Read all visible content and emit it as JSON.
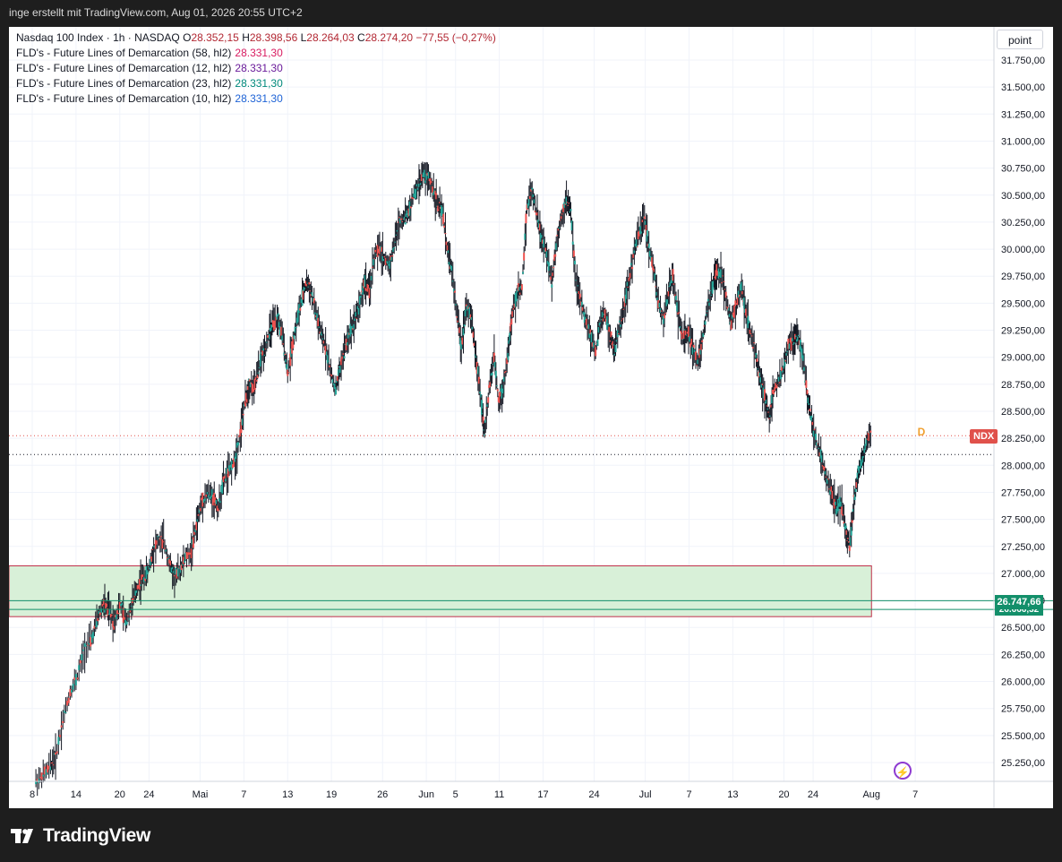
{
  "header": {
    "attribution": "inge erstellt mit TradingView.com, Aug 01, 2026 20:55 UTC+2"
  },
  "legend": {
    "symbol": "Nasdaq 100 Index · 1h · NASDAQ",
    "open_key": "O",
    "open": "28.352,15",
    "high_key": "H",
    "high": "28.398,56",
    "low_key": "L",
    "low": "28.264,03",
    "close_key": "C",
    "close": "28.274,20",
    "change": "−77,55 (−0,27%)",
    "indicators": [
      {
        "label": "FLD's - Future Lines of Demarcation (58, hl2)",
        "value": "28.331,30",
        "color": "#d81b60"
      },
      {
        "label": "FLD's - Future Lines of Demarcation (12, hl2)",
        "value": "28.331,30",
        "color": "#6a1b9a"
      },
      {
        "label": "FLD's - Future Lines of Demarcation (23, hl2)",
        "value": "28.331,30",
        "color": "#00897b"
      },
      {
        "label": "FLD's - Future Lines of Demarcation (10, hl2)",
        "value": "28.331,30",
        "color": "#1e63d6"
      }
    ]
  },
  "scale_mode_button": "point",
  "badges": {
    "symbol_badge": "NDX",
    "fld_value": "26.747,66",
    "fld_value_hidden": "26.666,32",
    "session_marker": "D"
  },
  "colors": {
    "candle_up": "#26a69a",
    "candle_down": "#ef5350",
    "bar_wick": "#131722",
    "zone_fill": "#d8f0d8",
    "zone_border": "#c0304a",
    "fld_line": "#138f6a",
    "ndx_badge": "#e0514b"
  },
  "footer": {
    "brand": "TradingView"
  },
  "chart_data": {
    "type": "line",
    "title": "Nasdaq 100 Index · 1h · NASDAQ",
    "xlabel": "",
    "ylabel": "",
    "ylim": [
      25100,
      31950
    ],
    "y_ticks": [
      "31.750,00",
      "31.500,00",
      "31.250,00",
      "31.000,00",
      "30.750,00",
      "30.500,00",
      "30.250,00",
      "30.000,00",
      "29.750,00",
      "29.500,00",
      "29.250,00",
      "29.000,00",
      "28.750,00",
      "28.500,00",
      "28.250,00",
      "28.000,00",
      "27.750,00",
      "27.500,00",
      "27.250,00",
      "27.000,00",
      "26.750,00",
      "26.500,00",
      "26.250,00",
      "26.000,00",
      "25.750,00",
      "25.500,00",
      "25.250,00"
    ],
    "y_tick_values": [
      31750,
      31500,
      31250,
      31000,
      30750,
      30500,
      30250,
      30000,
      29750,
      29500,
      29250,
      29000,
      28750,
      28500,
      28250,
      28000,
      27750,
      27500,
      27250,
      27000,
      26750,
      26500,
      26250,
      26000,
      25750,
      25500,
      25250
    ],
    "x_ticks": [
      {
        "label": "8",
        "day": 0
      },
      {
        "label": "14",
        "day": 6
      },
      {
        "label": "20",
        "day": 12
      },
      {
        "label": "24",
        "day": 16
      },
      {
        "label": "Mai",
        "day": 23
      },
      {
        "label": "7",
        "day": 29
      },
      {
        "label": "13",
        "day": 35
      },
      {
        "label": "19",
        "day": 41
      },
      {
        "label": "26",
        "day": 48
      },
      {
        "label": "Jun",
        "day": 54
      },
      {
        "label": "5",
        "day": 58
      },
      {
        "label": "11",
        "day": 64
      },
      {
        "label": "17",
        "day": 70
      },
      {
        "label": "24",
        "day": 77
      },
      {
        "label": "Jul",
        "day": 84
      },
      {
        "label": "7",
        "day": 90
      },
      {
        "label": "13",
        "day": 96
      },
      {
        "label": "20",
        "day": 103
      },
      {
        "label": "24",
        "day": 107
      },
      {
        "label": "Aug",
        "day": 115
      },
      {
        "label": "7",
        "day": 121
      }
    ],
    "series": [
      {
        "name": "Nasdaq 100 Index",
        "points": [
          [
            0.5,
            25080
          ],
          [
            1.5,
            25130
          ],
          [
            2.5,
            25220
          ],
          [
            3.2,
            25300
          ],
          [
            4.2,
            25650
          ],
          [
            5.2,
            25900
          ],
          [
            6.2,
            26050
          ],
          [
            7.2,
            26300
          ],
          [
            8.2,
            26400
          ],
          [
            9.0,
            26600
          ],
          [
            9.8,
            26720
          ],
          [
            10.5,
            26650
          ],
          [
            11.2,
            26550
          ],
          [
            12.0,
            26720
          ],
          [
            12.8,
            26550
          ],
          [
            13.6,
            26700
          ],
          [
            14.3,
            26850
          ],
          [
            15.0,
            26950
          ],
          [
            15.8,
            27000
          ],
          [
            16.5,
            27200
          ],
          [
            17.2,
            27300
          ],
          [
            18.0,
            27300
          ],
          [
            18.8,
            27100
          ],
          [
            19.5,
            26950
          ],
          [
            20.3,
            27050
          ],
          [
            21.0,
            27150
          ],
          [
            21.8,
            27200
          ],
          [
            22.5,
            27450
          ],
          [
            23.2,
            27650
          ],
          [
            24.0,
            27750
          ],
          [
            24.8,
            27700
          ],
          [
            25.5,
            27600
          ],
          [
            26.2,
            27850
          ],
          [
            27.0,
            27950
          ],
          [
            27.8,
            28050
          ],
          [
            28.5,
            28300
          ],
          [
            29.2,
            28600
          ],
          [
            29.8,
            28750
          ],
          [
            30.4,
            28700
          ],
          [
            31.0,
            28900
          ],
          [
            31.7,
            29050
          ],
          [
            32.4,
            29200
          ],
          [
            33.0,
            29300
          ],
          [
            33.7,
            29350
          ],
          [
            34.4,
            29150
          ],
          [
            35.0,
            28850
          ],
          [
            35.6,
            29100
          ],
          [
            36.3,
            29350
          ],
          [
            37.0,
            29550
          ],
          [
            37.6,
            29700
          ],
          [
            38.2,
            29600
          ],
          [
            38.9,
            29400
          ],
          [
            39.6,
            29200
          ],
          [
            40.2,
            29100
          ],
          [
            40.9,
            28850
          ],
          [
            41.6,
            28700
          ],
          [
            42.2,
            28900
          ],
          [
            42.9,
            29100
          ],
          [
            43.6,
            29250
          ],
          [
            44.2,
            29350
          ],
          [
            44.9,
            29500
          ],
          [
            45.6,
            29700
          ],
          [
            46.2,
            29600
          ],
          [
            46.9,
            29950
          ],
          [
            47.6,
            30000
          ],
          [
            48.3,
            29900
          ],
          [
            49.0,
            29850
          ],
          [
            49.6,
            30050
          ],
          [
            50.3,
            30250
          ],
          [
            51.0,
            30300
          ],
          [
            51.6,
            30350
          ],
          [
            52.3,
            30500
          ],
          [
            53.0,
            30600
          ],
          [
            53.6,
            30700
          ],
          [
            54.3,
            30650
          ],
          [
            55.0,
            30550
          ],
          [
            55.6,
            30400
          ],
          [
            56.2,
            30350
          ],
          [
            56.9,
            30000
          ],
          [
            57.5,
            29800
          ],
          [
            58.2,
            29400
          ],
          [
            58.8,
            29100
          ],
          [
            59.5,
            29500
          ],
          [
            60.2,
            29350
          ],
          [
            60.8,
            29000
          ],
          [
            61.5,
            28600
          ],
          [
            62.0,
            28300
          ],
          [
            62.6,
            28700
          ],
          [
            63.3,
            29000
          ],
          [
            63.9,
            28600
          ],
          [
            64.5,
            28700
          ],
          [
            65.2,
            29050
          ],
          [
            65.8,
            29400
          ],
          [
            66.5,
            29600
          ],
          [
            67.1,
            29650
          ],
          [
            67.8,
            30400
          ],
          [
            68.5,
            30550
          ],
          [
            69.2,
            30300
          ],
          [
            69.8,
            30100
          ],
          [
            70.5,
            29950
          ],
          [
            71.2,
            29700
          ],
          [
            71.8,
            30050
          ],
          [
            72.5,
            30300
          ],
          [
            73.2,
            30450
          ],
          [
            73.8,
            30350
          ],
          [
            74.5,
            29700
          ],
          [
            75.2,
            29500
          ],
          [
            75.8,
            29350
          ],
          [
            76.5,
            29200
          ],
          [
            77.2,
            29050
          ],
          [
            77.9,
            29350
          ],
          [
            78.5,
            29400
          ],
          [
            79.2,
            29200
          ],
          [
            79.8,
            29050
          ],
          [
            80.5,
            29300
          ],
          [
            81.2,
            29500
          ],
          [
            81.8,
            29700
          ],
          [
            82.5,
            30000
          ],
          [
            83.2,
            30150
          ],
          [
            83.9,
            30300
          ],
          [
            84.5,
            30000
          ],
          [
            85.2,
            29800
          ],
          [
            85.8,
            29500
          ],
          [
            86.5,
            29350
          ],
          [
            87.2,
            29600
          ],
          [
            87.8,
            29750
          ],
          [
            88.5,
            29400
          ],
          [
            89.2,
            29150
          ],
          [
            89.8,
            29250
          ],
          [
            90.5,
            29100
          ],
          [
            91.2,
            28950
          ],
          [
            91.8,
            29150
          ],
          [
            92.5,
            29450
          ],
          [
            93.2,
            29650
          ],
          [
            93.8,
            29800
          ],
          [
            94.5,
            29750
          ],
          [
            95.2,
            29500
          ],
          [
            95.8,
            29300
          ],
          [
            96.5,
            29500
          ],
          [
            97.2,
            29650
          ],
          [
            97.8,
            29400
          ],
          [
            98.5,
            29200
          ],
          [
            99.2,
            29000
          ],
          [
            99.8,
            28800
          ],
          [
            100.5,
            28600
          ],
          [
            101.0,
            28450
          ],
          [
            101.6,
            28700
          ],
          [
            102.3,
            28800
          ],
          [
            103.0,
            28900
          ],
          [
            103.6,
            29100
          ],
          [
            104.3,
            29150
          ],
          [
            104.9,
            29200
          ],
          [
            105.5,
            29050
          ],
          [
            106.2,
            28650
          ],
          [
            106.8,
            28400
          ],
          [
            107.5,
            28200
          ],
          [
            108.2,
            28050
          ],
          [
            108.8,
            27900
          ],
          [
            109.5,
            27750
          ],
          [
            110.2,
            27600
          ],
          [
            110.8,
            27650
          ],
          [
            111.5,
            27400
          ],
          [
            112.0,
            27250
          ],
          [
            112.6,
            27650
          ],
          [
            113.2,
            27950
          ],
          [
            113.8,
            28050
          ],
          [
            114.4,
            28250
          ],
          [
            115.0,
            28300
          ]
        ]
      },
      {
        "name": "FLD's - Future Lines of Demarcation (58, hl2)",
        "level": 26747.66
      },
      {
        "name": "FLD's - Future Lines of Demarcation (12, hl2)",
        "level": 26666.32
      }
    ],
    "zone": {
      "day_start": -5,
      "day_end": 115,
      "price_top": 27070,
      "price_bottom": 26600
    },
    "last_price": 28274.2,
    "reference_level": 28100,
    "grid": true,
    "legend": "top-left"
  }
}
